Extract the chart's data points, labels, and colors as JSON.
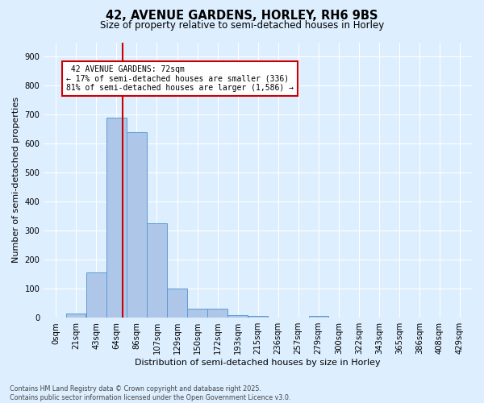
{
  "title_line1": "42, AVENUE GARDENS, HORLEY, RH6 9BS",
  "title_line2": "Size of property relative to semi-detached houses in Horley",
  "xlabel": "Distribution of semi-detached houses by size in Horley",
  "ylabel": "Number of semi-detached properties",
  "bar_labels": [
    "0sqm",
    "21sqm",
    "43sqm",
    "64sqm",
    "86sqm",
    "107sqm",
    "129sqm",
    "150sqm",
    "172sqm",
    "193sqm",
    "215sqm",
    "236sqm",
    "257sqm",
    "279sqm",
    "300sqm",
    "322sqm",
    "343sqm",
    "365sqm",
    "386sqm",
    "408sqm",
    "429sqm"
  ],
  "bar_values": [
    0,
    15,
    155,
    690,
    640,
    325,
    100,
    30,
    30,
    10,
    5,
    0,
    0,
    5,
    0,
    0,
    0,
    0,
    0,
    0,
    0
  ],
  "bar_color": "#aec6e8",
  "bar_edgecolor": "#5b9bd5",
  "background_color": "#ddeeff",
  "grid_color": "#ffffff",
  "property_label": "42 AVENUE GARDENS: 72sqm",
  "pct_smaller": 17,
  "pct_smaller_n": 336,
  "pct_larger": 81,
  "pct_larger_n": 1586,
  "redline_x": 3,
  "bin_width": 1,
  "ylim": [
    0,
    950
  ],
  "yticks": [
    0,
    100,
    200,
    300,
    400,
    500,
    600,
    700,
    800,
    900
  ],
  "annotation_box_color": "#cc0000",
  "footer_line1": "Contains HM Land Registry data © Crown copyright and database right 2025.",
  "footer_line2": "Contains public sector information licensed under the Open Government Licence v3.0."
}
